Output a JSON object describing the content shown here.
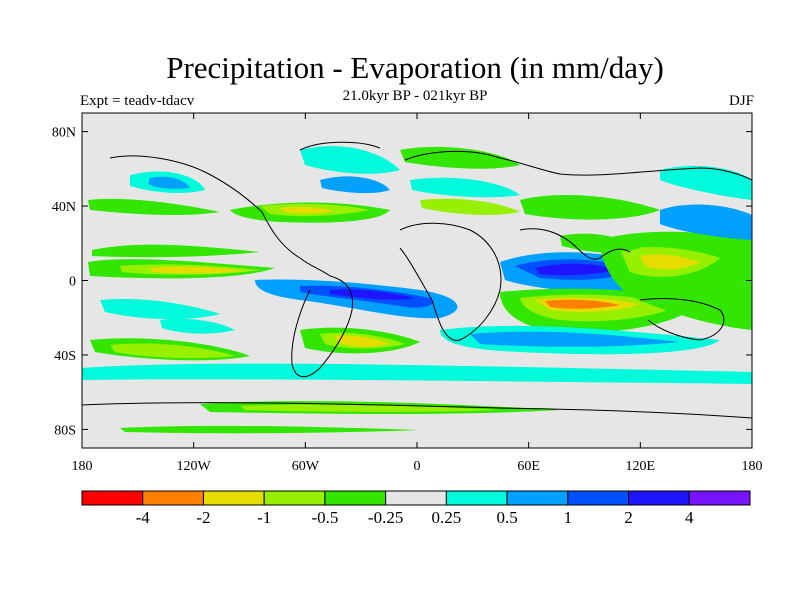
{
  "header": {
    "title": "Precipitation - Evaporation (in mm/day)",
    "subtitle": "21.0kyr BP - 021kyr BP",
    "left_label": "Expt = teadv-tdacv",
    "right_label": "DJF"
  },
  "map": {
    "projection": "cylindrical equidistant",
    "lon_range": [
      -180,
      180
    ],
    "lat_range": [
      -90,
      90
    ],
    "background_color": "#e6e6e6",
    "lat_ticks": [
      {
        "value": 80,
        "label": "80N"
      },
      {
        "value": 40,
        "label": "40N"
      },
      {
        "value": 0,
        "label": "0"
      },
      {
        "value": -40,
        "label": "40S"
      },
      {
        "value": -80,
        "label": "80S"
      }
    ],
    "lon_ticks": [
      {
        "value": -180,
        "label": "180"
      },
      {
        "value": -120,
        "label": "120W"
      },
      {
        "value": -60,
        "label": "60W"
      },
      {
        "value": 0,
        "label": "0"
      },
      {
        "value": 60,
        "label": "60E"
      },
      {
        "value": 120,
        "label": "120E"
      },
      {
        "value": 180,
        "label": "180"
      }
    ]
  },
  "colorbar": {
    "colors": [
      "#ff0000",
      "#ff8000",
      "#e6dc00",
      "#96f000",
      "#32e600",
      "#e6e6e6",
      "#00fadc",
      "#00a0ff",
      "#0050ff",
      "#1e14ff",
      "#7814ff"
    ],
    "labels": [
      "-4",
      "-2",
      "-1",
      "-0.5",
      "-0.25",
      "0.25",
      "0.5",
      "1",
      "2",
      "4"
    ]
  }
}
